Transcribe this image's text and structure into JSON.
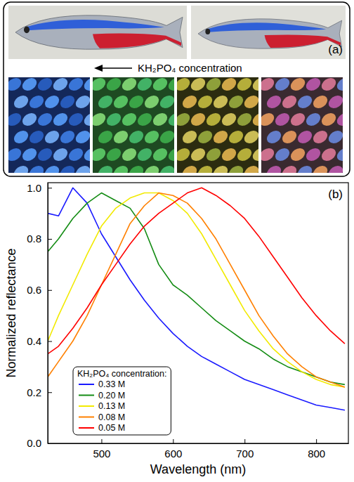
{
  "panel_a": {
    "label": "(a)",
    "caption": "KH₂PO₄ concentration"
  },
  "chart_data": {
    "type": "line",
    "panel_label": "(b)",
    "x_label": "Wavelength (nm)",
    "y_label": "Normalized reflectance",
    "legend_title": "KH₂PO₄ concentration:",
    "legend": "lower left",
    "x": [
      425,
      440,
      460,
      480,
      500,
      520,
      540,
      560,
      580,
      600,
      620,
      640,
      660,
      680,
      700,
      720,
      740,
      760,
      780,
      800,
      820,
      840
    ],
    "series": [
      {
        "name": "0.33 M",
        "color": "#1a1aff",
        "values": [
          0.9,
          0.89,
          1.0,
          0.94,
          0.82,
          0.73,
          0.64,
          0.56,
          0.49,
          0.43,
          0.38,
          0.34,
          0.31,
          0.28,
          0.25,
          0.23,
          0.21,
          0.19,
          0.17,
          0.15,
          0.14,
          0.13
        ]
      },
      {
        "name": "0.20 M",
        "color": "#148c14",
        "values": [
          0.75,
          0.8,
          0.88,
          0.94,
          0.98,
          0.95,
          0.92,
          0.84,
          0.7,
          0.62,
          0.58,
          0.53,
          0.48,
          0.44,
          0.4,
          0.37,
          0.33,
          0.3,
          0.28,
          0.26,
          0.24,
          0.23
        ]
      },
      {
        "name": "0.13 M",
        "color": "#f2ea00",
        "values": [
          0.4,
          0.5,
          0.62,
          0.74,
          0.85,
          0.92,
          0.96,
          0.98,
          0.98,
          0.95,
          0.9,
          0.82,
          0.72,
          0.62,
          0.52,
          0.44,
          0.37,
          0.32,
          0.28,
          0.25,
          0.23,
          0.22
        ]
      },
      {
        "name": "0.08 M",
        "color": "#ff8000",
        "values": [
          0.26,
          0.32,
          0.4,
          0.5,
          0.62,
          0.74,
          0.86,
          0.93,
          0.98,
          0.97,
          0.94,
          0.88,
          0.8,
          0.7,
          0.6,
          0.5,
          0.42,
          0.35,
          0.3,
          0.26,
          0.24,
          0.22
        ]
      },
      {
        "name": "0.05 M",
        "color": "#ff0000",
        "values": [
          0.35,
          0.38,
          0.45,
          0.53,
          0.62,
          0.7,
          0.78,
          0.85,
          0.9,
          0.94,
          0.98,
          1.0,
          0.97,
          0.93,
          0.88,
          0.81,
          0.73,
          0.65,
          0.57,
          0.5,
          0.44,
          0.39
        ]
      }
    ],
    "xlim": [
      425,
      845
    ],
    "xticks": [
      500,
      600,
      700,
      800
    ],
    "ylim": [
      0,
      1.02
    ],
    "yticks": [
      {
        "value": 0,
        "label": "0.0"
      },
      {
        "value": 0.2,
        "label": "0.2"
      },
      {
        "value": 0.4,
        "label": "0.4"
      },
      {
        "value": 0.6,
        "label": "0.6"
      },
      {
        "value": 0.8,
        "label": "0.8"
      },
      {
        "value": 1.0,
        "label": "1.0"
      }
    ]
  }
}
